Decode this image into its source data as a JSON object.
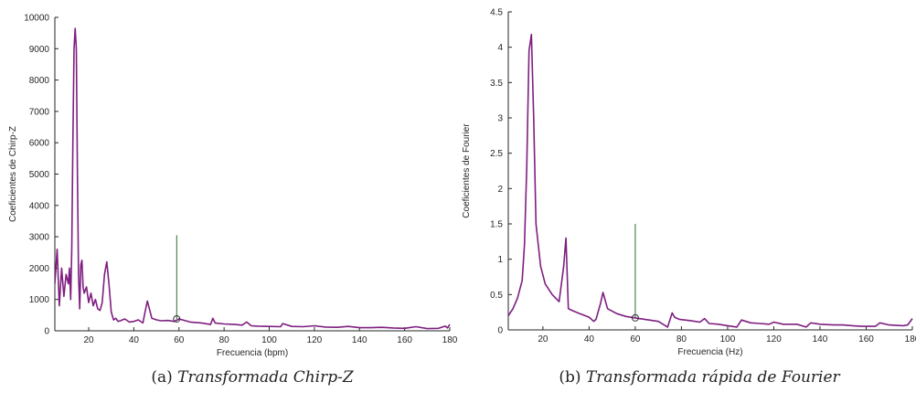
{
  "chart_data": [
    {
      "type": "line",
      "caption_label": "(a)",
      "caption_text": "Transformada Chirp-Z",
      "xlabel": "Frecuencia (bpm)",
      "ylabel": "Coeficientes de Chirp-Z",
      "xlim": [
        5,
        180
      ],
      "ylim": [
        0,
        10000
      ],
      "xticks": [
        20,
        40,
        60,
        80,
        100,
        120,
        140,
        160,
        180
      ],
      "yticks": [
        0,
        1000,
        2000,
        3000,
        4000,
        5000,
        6000,
        7000,
        8000,
        9000,
        10000
      ],
      "grid": false,
      "line_color": "#7e1e80",
      "marker": {
        "x": 59,
        "y": 380,
        "stem_top": 3050,
        "stem_color": "#2e6b2e"
      },
      "series": [
        {
          "x": [
            5,
            6,
            7,
            8,
            9,
            10,
            11,
            11.5,
            12,
            12.5,
            13,
            13.5,
            14,
            14.5,
            15,
            15.5,
            16,
            16.5,
            17,
            17.5,
            18,
            19,
            20,
            21,
            22,
            23,
            24,
            25,
            26,
            27,
            28,
            29,
            30,
            31,
            32,
            33,
            34,
            36,
            38,
            40,
            42,
            44,
            45,
            46,
            48,
            50,
            52,
            55,
            58,
            60,
            65,
            70,
            74,
            75,
            76,
            80,
            85,
            88,
            90,
            92,
            95,
            100,
            105,
            106,
            110,
            115,
            120,
            125,
            130,
            135,
            140,
            145,
            150,
            155,
            160,
            165,
            170,
            175,
            178,
            179,
            180
          ],
          "y": [
            1500,
            2600,
            800,
            2000,
            1100,
            1800,
            1500,
            2000,
            1000,
            2600,
            6000,
            9000,
            9650,
            9000,
            5000,
            1800,
            700,
            2100,
            2250,
            1400,
            1200,
            1400,
            900,
            1200,
            800,
            1000,
            700,
            650,
            900,
            1800,
            2200,
            1500,
            600,
            350,
            400,
            300,
            320,
            380,
            280,
            300,
            350,
            250,
            600,
            950,
            400,
            350,
            320,
            330,
            300,
            380,
            280,
            250,
            200,
            400,
            250,
            220,
            200,
            180,
            280,
            160,
            150,
            140,
            130,
            230,
            140,
            130,
            160,
            120,
            110,
            140,
            100,
            100,
            110,
            90,
            80,
            130,
            70,
            80,
            150,
            90,
            200
          ]
        }
      ]
    },
    {
      "type": "line",
      "caption_label": "(b)",
      "caption_text": "Transformada rápida de Fourier",
      "xlabel": "Frecuencia (Hz)",
      "ylabel": "Coeficientes de Fourier",
      "xlim": [
        5,
        180
      ],
      "ylim": [
        0,
        4.5
      ],
      "xticks": [
        20,
        40,
        60,
        80,
        100,
        120,
        140,
        160,
        180
      ],
      "xticklabels": [
        "20",
        "40",
        "60",
        "80",
        "100",
        "120",
        "140",
        "160",
        "180"
      ],
      "yticks": [
        0,
        0.5,
        1,
        1.5,
        2,
        2.5,
        3,
        3.5,
        4,
        4.5
      ],
      "grid": false,
      "line_color": "#7e1e80",
      "marker": {
        "x": 60,
        "y": 0.17,
        "stem_top": 1.5,
        "stem_color": "#2e6b2e"
      },
      "series": [
        {
          "x": [
            5,
            7,
            9,
            11,
            12,
            13,
            14,
            15,
            16,
            17,
            19,
            21,
            24,
            27,
            29,
            30,
            31,
            33,
            36,
            40,
            42,
            43,
            45,
            46,
            48,
            52,
            56,
            60,
            64,
            70,
            74,
            76,
            77,
            79,
            84,
            88,
            90,
            92,
            96,
            100,
            104,
            106,
            110,
            114,
            118,
            120,
            124,
            130,
            134,
            136,
            140,
            146,
            150,
            154,
            158,
            160,
            164,
            166,
            170,
            176,
            178,
            180
          ],
          "y": [
            0.2,
            0.3,
            0.45,
            0.7,
            1.2,
            2.3,
            3.95,
            4.18,
            3.0,
            1.5,
            0.9,
            0.65,
            0.5,
            0.4,
            0.9,
            1.3,
            0.3,
            0.27,
            0.23,
            0.18,
            0.12,
            0.15,
            0.38,
            0.53,
            0.3,
            0.23,
            0.19,
            0.17,
            0.15,
            0.12,
            0.04,
            0.24,
            0.18,
            0.15,
            0.13,
            0.11,
            0.16,
            0.09,
            0.08,
            0.06,
            0.04,
            0.14,
            0.1,
            0.09,
            0.08,
            0.11,
            0.08,
            0.08,
            0.04,
            0.1,
            0.08,
            0.07,
            0.07,
            0.06,
            0.05,
            0.05,
            0.05,
            0.1,
            0.07,
            0.06,
            0.07,
            0.16
          ]
        }
      ]
    }
  ]
}
